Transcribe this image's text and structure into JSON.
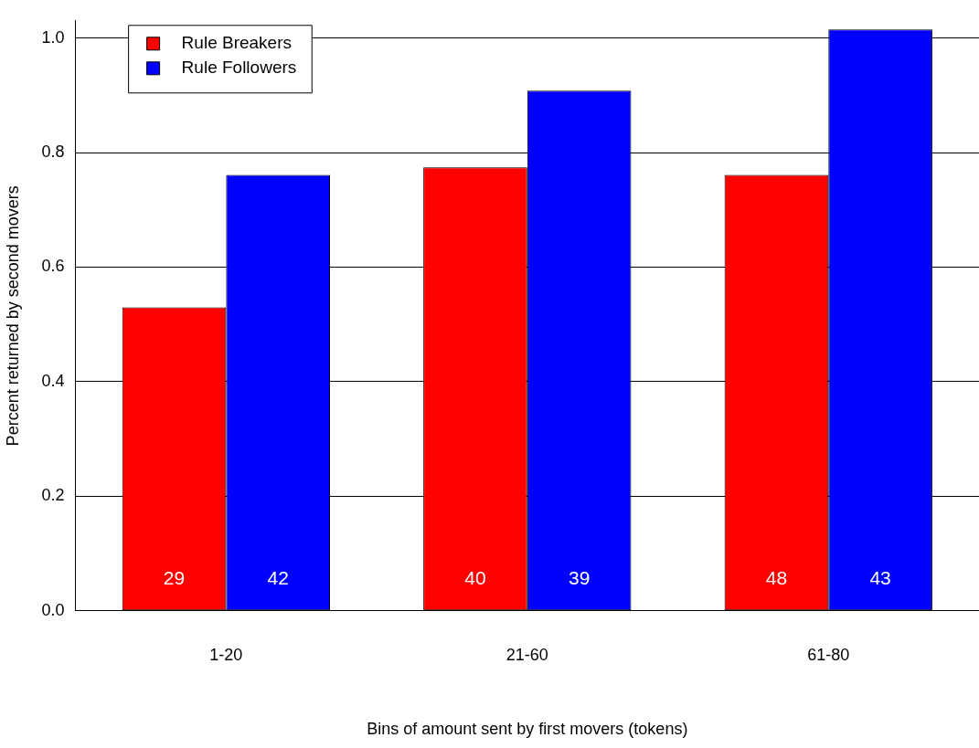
{
  "chart_data": {
    "type": "bar",
    "xlabel": "Bins of amount sent by first movers (tokens)",
    "ylabel": "Percent returned by second movers",
    "categories": [
      "1-20",
      "21-60",
      "61-80"
    ],
    "series": [
      {
        "name": "Rule Breakers",
        "color": "#ff0000",
        "values": [
          0.53,
          0.774,
          0.761
        ]
      },
      {
        "name": "Rule Followers",
        "color": "#0000ff",
        "values": [
          0.761,
          0.908,
          1.015
        ]
      }
    ],
    "annotations": [
      "29",
      "42",
      "40",
      "39",
      "48",
      "43"
    ],
    "ylim": [
      0,
      1.03
    ],
    "yticks": [
      {
        "value": 0,
        "label": "0.0"
      },
      {
        "value": 0.2,
        "label": "0.2"
      },
      {
        "value": 0.4,
        "label": "0.4"
      },
      {
        "value": 0.6,
        "label": "0.6"
      },
      {
        "value": 0.8,
        "label": "0.8"
      },
      {
        "value": 1,
        "label": "1.0"
      }
    ],
    "grid": "y",
    "legend": "top left"
  }
}
